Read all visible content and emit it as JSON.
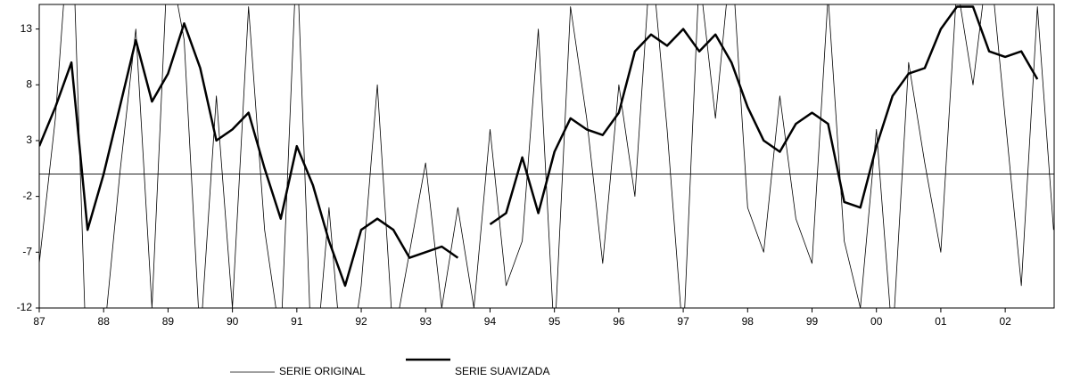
{
  "chart_data": {
    "type": "line",
    "x": [
      1987,
      1987.25,
      1987.5,
      1987.75,
      1988,
      1988.25,
      1988.5,
      1988.75,
      1989,
      1989.25,
      1989.5,
      1989.75,
      1990,
      1990.25,
      1990.5,
      1990.75,
      1991,
      1991.25,
      1991.5,
      1991.75,
      1992,
      1992.25,
      1992.5,
      1992.75,
      1993,
      1993.25,
      1993.5,
      1993.75,
      1994,
      1994.25,
      1994.5,
      1994.75,
      1995,
      1995.25,
      1995.5,
      1995.75,
      1996,
      1996.25,
      1996.5,
      1996.75,
      1997,
      1997.25,
      1997.5,
      1997.75,
      1998,
      1998.25,
      1998.5,
      1998.75,
      1999,
      1999.25,
      1999.5,
      1999.75,
      2000,
      2000.25,
      2000.5,
      2000.75,
      2001,
      2001.25,
      2001.5,
      2001.75,
      2002,
      2002.25,
      2002.5,
      2002.75
    ],
    "series": [
      {
        "name": "SERIE ORIGINAL",
        "color": "#000000",
        "width": 0.8,
        "values": [
          -8,
          5,
          25,
          -20,
          -15,
          0,
          13,
          -12,
          20,
          12,
          -15,
          7,
          -12,
          15,
          -5,
          -15,
          20,
          -20,
          -3,
          -20,
          -10,
          8,
          -15,
          -7,
          1,
          -12,
          -3,
          -12,
          4,
          -10,
          -6,
          13,
          -15,
          15,
          5,
          -8,
          8,
          -2,
          20,
          4,
          -15,
          18,
          5,
          20,
          -3,
          -7,
          7,
          -4,
          -8,
          16,
          -6,
          -12,
          4,
          -15,
          10,
          1,
          -7,
          17,
          8,
          20,
          5,
          -10,
          15,
          -5
        ]
      },
      {
        "name": "SERIE SUAVIZADA",
        "color": "#000000",
        "width": 2.5,
        "values": [
          2.5,
          6,
          10,
          -5,
          0,
          6,
          12,
          6.5,
          9,
          13.5,
          9.5,
          3,
          4,
          5.5,
          0.5,
          -4,
          2.5,
          -1,
          -6,
          -10,
          -5,
          -4,
          -5,
          -7.5,
          -7,
          -6.5,
          -7.5,
          null,
          -4.5,
          -3.5,
          1.5,
          -3.5,
          2,
          5,
          4,
          3.5,
          5.5,
          11,
          12.5,
          11.5,
          13,
          11,
          12.5,
          10,
          6,
          3,
          2,
          4.5,
          5.5,
          4.5,
          -2.5,
          -3,
          2.5,
          7,
          9,
          9.5,
          13,
          15,
          15,
          11,
          10.5,
          11,
          8.5,
          null
        ]
      }
    ],
    "xlim": [
      1987,
      2002.76
    ],
    "xticks": [
      {
        "value": 1987,
        "label": "87"
      },
      {
        "value": 1988,
        "label": "88"
      },
      {
        "value": 1989,
        "label": "89"
      },
      {
        "value": 1990,
        "label": "90"
      },
      {
        "value": 1991,
        "label": "91"
      },
      {
        "value": 1992,
        "label": "92"
      },
      {
        "value": 1993,
        "label": "93"
      },
      {
        "value": 1994,
        "label": "94"
      },
      {
        "value": 1995,
        "label": "95"
      },
      {
        "value": 1996,
        "label": "96"
      },
      {
        "value": 1997,
        "label": "97"
      },
      {
        "value": 1998,
        "label": "98"
      },
      {
        "value": 1999,
        "label": "99"
      },
      {
        "value": 2000,
        "label": "00"
      },
      {
        "value": 2001,
        "label": "01"
      },
      {
        "value": 2002,
        "label": "02"
      }
    ],
    "ylim": [
      -12,
      15.2
    ],
    "yticks": [
      -12,
      -7,
      -2,
      3,
      8,
      13
    ],
    "grid": false
  }
}
